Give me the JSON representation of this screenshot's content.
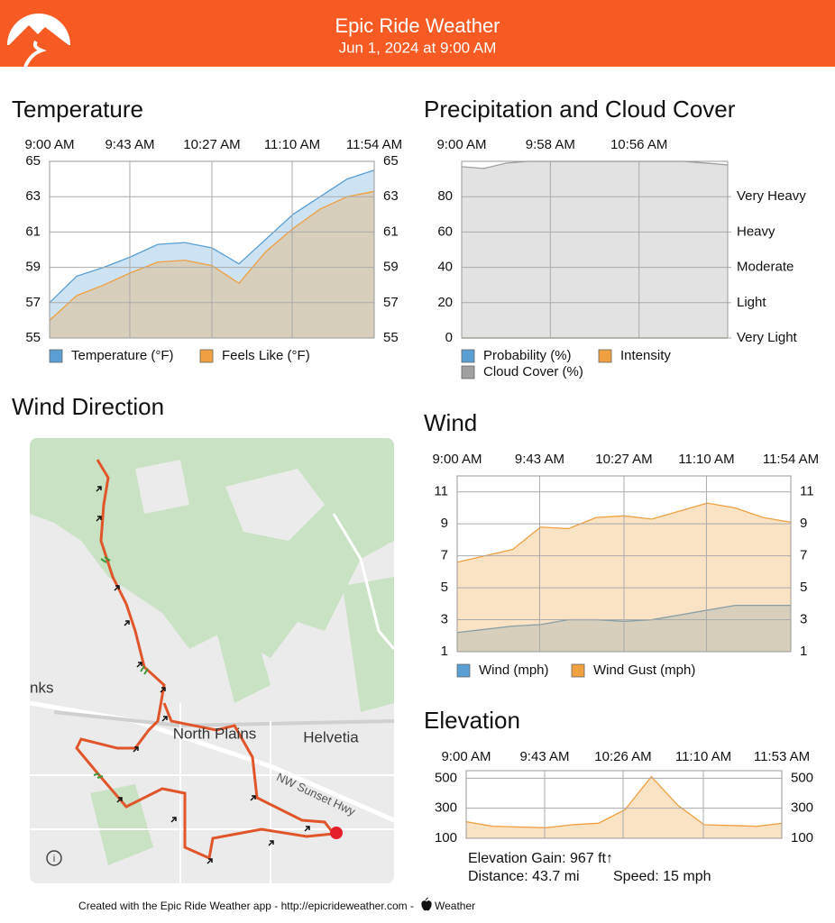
{
  "header": {
    "title": "Epic Ride Weather",
    "subtitle": "Jun 1, 2024 at 9:00 AM"
  },
  "map": {
    "title": "Wind Direction",
    "labels": [
      "North Plains",
      "Helvetia",
      "NW Sunset Hwy",
      "nks"
    ]
  },
  "footer": {
    "credit": "Created with the Epic Ride Weather app - http://epicrideweather.com -",
    "source": "Weather"
  },
  "chart_data": [
    {
      "type": "area",
      "title": "Temperature",
      "x": [
        0,
        14.5,
        29,
        43.5,
        58,
        72.5,
        87,
        101.5,
        116,
        130.5,
        145,
        159.5,
        174
      ],
      "xlim": [
        0,
        174
      ],
      "xticks": [
        {
          "value": 0,
          "label": "9:00 AM"
        },
        {
          "value": 43,
          "label": "9:43 AM"
        },
        {
          "value": 87,
          "label": "10:27 AM"
        },
        {
          "value": 130,
          "label": "11:10 AM"
        },
        {
          "value": 174,
          "label": "11:54 AM"
        }
      ],
      "ylim": [
        55,
        65
      ],
      "yticks": [
        55,
        57,
        59,
        61,
        63,
        65
      ],
      "grid": true,
      "series": [
        {
          "name": "Temperature (°F)",
          "color": "#5a9fd4",
          "values": [
            57.0,
            58.5,
            59.0,
            59.6,
            60.3,
            60.4,
            60.1,
            59.2,
            60.6,
            62.0,
            63.0,
            64.0,
            64.5
          ]
        },
        {
          "name": "Feels Like (°F)",
          "color": "#f0a040",
          "values": [
            56.0,
            57.4,
            58.0,
            58.7,
            59.3,
            59.4,
            59.1,
            58.1,
            59.9,
            61.2,
            62.3,
            63.0,
            63.3
          ]
        }
      ]
    },
    {
      "type": "area",
      "title": "Precipitation and Cloud Cover",
      "x": [
        0,
        14.5,
        29,
        43.5,
        58,
        72.5,
        87,
        101.5,
        116,
        130.5,
        145,
        159.5,
        174
      ],
      "xlim": [
        0,
        174
      ],
      "xticks": [
        {
          "value": 0,
          "label": "9:00 AM"
        },
        {
          "value": 58,
          "label": "9:58 AM"
        },
        {
          "value": 116,
          "label": "10:56 AM"
        }
      ],
      "ylim": [
        0,
        100
      ],
      "yticks": [
        0,
        20,
        40,
        60,
        80
      ],
      "y2lim": [
        0,
        100
      ],
      "y2ticks": [
        {
          "value": 0,
          "label": "Very Light"
        },
        {
          "value": 20,
          "label": "Light"
        },
        {
          "value": 40,
          "label": "Moderate"
        },
        {
          "value": 60,
          "label": "Heavy"
        },
        {
          "value": 80,
          "label": "Very Heavy"
        }
      ],
      "grid": true,
      "series": [
        {
          "name": "Cloud Cover (%)",
          "color": "#a0a0a0",
          "values": [
            97,
            96,
            99,
            100,
            100,
            100,
            100,
            100,
            100,
            100,
            100,
            99,
            98
          ]
        },
        {
          "name": "Probability (%)",
          "color": "#5a9fd4",
          "values": [
            0,
            0,
            0,
            0,
            0,
            0,
            0,
            0,
            0,
            0,
            0,
            0,
            0
          ]
        },
        {
          "name": "Intensity",
          "color": "#f0a040",
          "values": [
            0,
            0,
            0,
            0,
            0,
            0,
            0,
            0,
            0,
            0,
            0,
            0,
            0
          ]
        }
      ]
    },
    {
      "type": "area",
      "title": "Wind",
      "x": [
        0,
        14.5,
        29,
        43.5,
        58,
        72.5,
        87,
        101.5,
        116,
        130.5,
        145,
        159.5,
        174
      ],
      "xlim": [
        0,
        174
      ],
      "xticks": [
        {
          "value": 0,
          "label": "9:00 AM"
        },
        {
          "value": 43,
          "label": "9:43 AM"
        },
        {
          "value": 87,
          "label": "10:27 AM"
        },
        {
          "value": 130,
          "label": "11:10 AM"
        },
        {
          "value": 174,
          "label": "11:54 AM"
        }
      ],
      "ylim": [
        1,
        12
      ],
      "yticks": [
        1,
        3,
        5,
        7,
        9,
        11
      ],
      "grid": true,
      "series": [
        {
          "name": "Wind (mph)",
          "color": "#5a9fd4",
          "values": [
            2.2,
            2.4,
            2.6,
            2.7,
            3.0,
            3.0,
            2.9,
            3.0,
            3.3,
            3.6,
            3.9,
            3.9,
            3.9
          ]
        },
        {
          "name": "Wind Gust (mph)",
          "color": "#f0a040",
          "values": [
            6.6,
            7.0,
            7.4,
            8.8,
            8.7,
            9.4,
            9.5,
            9.3,
            9.8,
            10.3,
            10.0,
            9.4,
            9.1
          ]
        }
      ]
    },
    {
      "type": "area",
      "title": "Elevation",
      "x": [
        0,
        14.5,
        29,
        43.5,
        58,
        72.5,
        87,
        101.5,
        116,
        130.5,
        145,
        159.5,
        173
      ],
      "xlim": [
        0,
        173
      ],
      "xticks": [
        {
          "value": 0,
          "label": "9:00 AM"
        },
        {
          "value": 43,
          "label": "9:43 AM"
        },
        {
          "value": 86,
          "label": "10:26 AM"
        },
        {
          "value": 130,
          "label": "11:10 AM"
        },
        {
          "value": 173,
          "label": "11:53 AM"
        }
      ],
      "ylim": [
        100,
        550
      ],
      "yticks": [
        100,
        300,
        500
      ],
      "grid": true,
      "series": [
        {
          "color": "#f0a040",
          "values": [
            210,
            180,
            175,
            170,
            190,
            200,
            290,
            510,
            320,
            190,
            185,
            180,
            200
          ]
        }
      ],
      "annotations": [
        "Elevation Gain: 967 ft↑",
        "Distance: 43.7 mi",
        "Speed: 15 mph"
      ]
    }
  ]
}
